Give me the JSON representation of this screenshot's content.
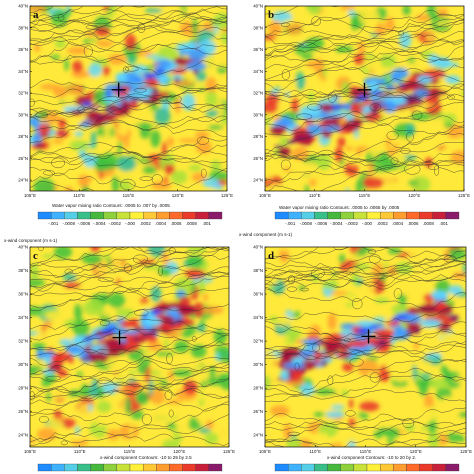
{
  "colors": {
    "dark_blue": "#1f4fff",
    "blue": "#3f9bff",
    "cyan": "#5fd7ff",
    "teal": "#2eb8a0",
    "green": "#3dbf3d",
    "lime": "#a6e03a",
    "yellow": "#ffe93a",
    "orange": "#ffa12e",
    "red": "#e8322c",
    "dark_red": "#a80f3a",
    "purple": "#7a1a6a",
    "contour": "#2b2b2b",
    "cross": "#000000"
  },
  "axes": {
    "lat_ticks": [
      "24°N",
      "26°N",
      "28°N",
      "30°N",
      "32°N",
      "34°N",
      "36°N",
      "38°N",
      "40°N"
    ],
    "lon_ticks": [
      "105°E",
      "110°E",
      "115°E",
      "120°E",
      "125°E"
    ]
  },
  "panels": [
    {
      "letter": "a",
      "title": "",
      "caption": "Water vapor mixing ratio Contours: .0005 to .007 by .0005",
      "colorbar_ticks": [
        "-.001",
        "-.0008",
        "-.0006",
        "-.0004",
        "-.0002",
        "-.000",
        ".0002",
        ".0004",
        ".0006",
        ".0008",
        ".001"
      ],
      "center_marker": [
        114.0,
        32.3
      ]
    },
    {
      "letter": "b",
      "title": "",
      "caption": "Water vapor mixing ratio Contours: .0005 to .0065 by .0005",
      "colorbar_ticks": [
        "-.001",
        "-.0008",
        "-.0006",
        "-.0004",
        "-.0002",
        "-.000",
        ".0002",
        ".0004",
        ".0006",
        ".0008",
        ".001"
      ],
      "center_marker": [
        115.0,
        32.3
      ]
    },
    {
      "letter": "c",
      "title": "x-wind component   (m s-1)",
      "caption": "x-wind component Contours: -10 to 25 by 2.5",
      "colorbar_ticks": [],
      "center_marker": [
        114.0,
        32.3
      ]
    },
    {
      "letter": "d",
      "title": "x-wind component   (m s-1)",
      "caption": "x-wind component Contours: -10 to 20 by 2.",
      "colorbar_ticks": [],
      "center_marker": [
        115.3,
        32.4
      ]
    }
  ],
  "top_right_title": "x-wind component   (m s-1)"
}
